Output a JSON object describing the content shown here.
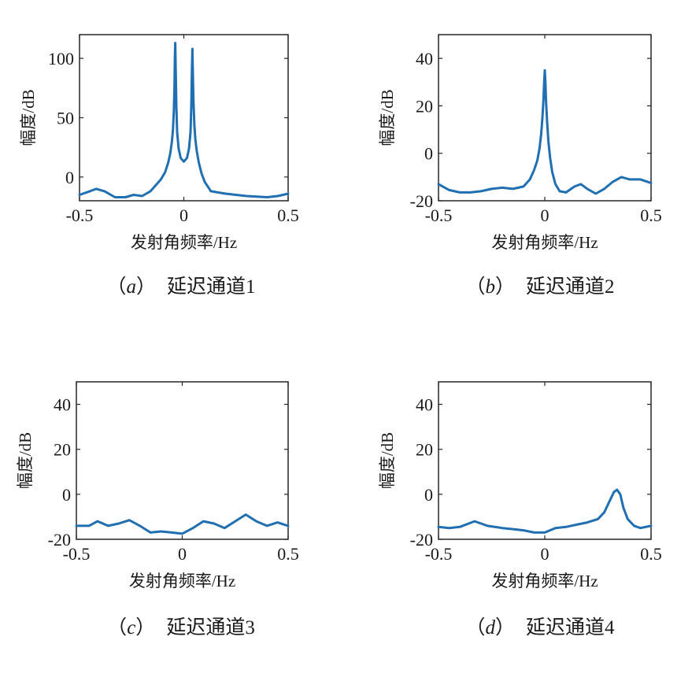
{
  "colors": {
    "line": "#1f6fb2",
    "axis": "#262626"
  },
  "chart_data": [
    {
      "type": "line",
      "caption_letter": "a",
      "caption_text": "延迟通道1",
      "xlabel": "发射角频率/Hz",
      "ylabel": "幅度/dB",
      "xlim": [
        -0.5,
        0.5
      ],
      "ylim": [
        -20,
        120
      ],
      "xticks": [
        -0.5,
        0,
        0.5
      ],
      "xtick_labels": [
        "-0.5",
        "0",
        "0.5"
      ],
      "yticks": [
        0,
        50,
        100
      ],
      "ytick_labels": [
        "0",
        "50",
        "100"
      ],
      "grid": false,
      "series": [
        {
          "x": [
            -0.5,
            -0.45,
            -0.42,
            -0.38,
            -0.33,
            -0.28,
            -0.24,
            -0.2,
            -0.16,
            -0.13,
            -0.11,
            -0.09,
            -0.075,
            -0.065,
            -0.057,
            -0.052,
            -0.048,
            -0.045,
            -0.043,
            -0.041,
            -0.039,
            -0.036,
            -0.032,
            -0.025,
            -0.015,
            0,
            0.015,
            0.025,
            0.032,
            0.036,
            0.039,
            0.041,
            0.043,
            0.046,
            0.05,
            0.055,
            0.062,
            0.072,
            0.085,
            0.1,
            0.13,
            0.2,
            0.3,
            0.4,
            0.45,
            0.5
          ],
          "y": [
            -15,
            -12,
            -10,
            -12,
            -17,
            -17,
            -15,
            -16,
            -12,
            -6,
            -2,
            4,
            12,
            20,
            30,
            40,
            55,
            75,
            100,
            113,
            90,
            60,
            38,
            24,
            16,
            13,
            16,
            24,
            38,
            60,
            90,
            108,
            90,
            65,
            45,
            32,
            22,
            12,
            3,
            -4,
            -12,
            -14,
            -16,
            -17,
            -16,
            -14
          ]
        }
      ]
    },
    {
      "type": "line",
      "caption_letter": "b",
      "caption_text": "延迟通道2",
      "xlabel": "发射角频率/Hz",
      "ylabel": "幅度/dB",
      "xlim": [
        -0.5,
        0.5
      ],
      "ylim": [
        -20,
        50
      ],
      "xticks": [
        -0.5,
        0,
        0.5
      ],
      "xtick_labels": [
        "-0.5",
        "0",
        "0.5"
      ],
      "yticks": [
        -20,
        0,
        20,
        40
      ],
      "ytick_labels": [
        "-20",
        "0",
        "20",
        "40"
      ],
      "grid": false,
      "series": [
        {
          "x": [
            -0.5,
            -0.45,
            -0.4,
            -0.35,
            -0.3,
            -0.25,
            -0.2,
            -0.15,
            -0.1,
            -0.07,
            -0.05,
            -0.035,
            -0.025,
            -0.017,
            -0.011,
            -0.006,
            -0.003,
            0,
            0.003,
            0.006,
            0.011,
            0.017,
            0.025,
            0.035,
            0.05,
            0.07,
            0.1,
            0.14,
            0.17,
            0.2,
            0.24,
            0.28,
            0.32,
            0.36,
            0.4,
            0.45,
            0.5
          ],
          "y": [
            -13,
            -15.5,
            -16.5,
            -16.5,
            -16,
            -15,
            -14.5,
            -15,
            -14,
            -11,
            -7,
            -3,
            2,
            8,
            15,
            23,
            30,
            35,
            30,
            22,
            13,
            5,
            -2,
            -8,
            -13,
            -16,
            -16.5,
            -14,
            -13,
            -15,
            -17,
            -15,
            -12,
            -10,
            -11,
            -11,
            -12.5
          ]
        }
      ]
    },
    {
      "type": "line",
      "caption_letter": "c",
      "caption_text": "延迟通道3",
      "xlabel": "发射角频率/Hz",
      "ylabel": "幅度/dB",
      "xlim": [
        -0.5,
        0.5
      ],
      "ylim": [
        -20,
        50
      ],
      "xticks": [
        -0.5,
        0,
        0.5
      ],
      "xtick_labels": [
        "-0.5",
        "0",
        "0.5"
      ],
      "yticks": [
        -20,
        0,
        20,
        40
      ],
      "ytick_labels": [
        "-20",
        "0",
        "20",
        "40"
      ],
      "grid": false,
      "series": [
        {
          "x": [
            -0.5,
            -0.44,
            -0.4,
            -0.35,
            -0.3,
            -0.25,
            -0.2,
            -0.15,
            -0.1,
            -0.05,
            0,
            0.05,
            0.1,
            0.15,
            0.2,
            0.25,
            0.3,
            0.35,
            0.4,
            0.45,
            0.5
          ],
          "y": [
            -14,
            -14,
            -12,
            -14,
            -13,
            -11.5,
            -14,
            -17,
            -16.5,
            -17,
            -17.5,
            -15,
            -12,
            -13,
            -15,
            -12,
            -9,
            -12,
            -14,
            -12.5,
            -14
          ]
        }
      ]
    },
    {
      "type": "line",
      "caption_letter": "d",
      "caption_text": "延迟通道4",
      "xlabel": "发射角频率/Hz",
      "ylabel": "幅度/dB",
      "xlim": [
        -0.5,
        0.5
      ],
      "ylim": [
        -20,
        50
      ],
      "xticks": [
        -0.5,
        0,
        0.5
      ],
      "xtick_labels": [
        "-0.5",
        "0",
        "0.5"
      ],
      "yticks": [
        -20,
        0,
        20,
        40
      ],
      "ytick_labels": [
        "-20",
        "0",
        "20",
        "40"
      ],
      "grid": false,
      "series": [
        {
          "x": [
            -0.5,
            -0.45,
            -0.4,
            -0.33,
            -0.27,
            -0.2,
            -0.15,
            -0.1,
            -0.05,
            0,
            0.05,
            0.1,
            0.15,
            0.2,
            0.25,
            0.28,
            0.31,
            0.325,
            0.34,
            0.355,
            0.37,
            0.39,
            0.42,
            0.45,
            0.5
          ],
          "y": [
            -14.5,
            -15,
            -14.5,
            -12,
            -14,
            -15,
            -15.5,
            -16,
            -17,
            -17,
            -15,
            -14.5,
            -13.5,
            -12.5,
            -11,
            -8,
            -2,
            1,
            2,
            0,
            -6,
            -11,
            -14,
            -15,
            -14
          ]
        }
      ]
    }
  ]
}
